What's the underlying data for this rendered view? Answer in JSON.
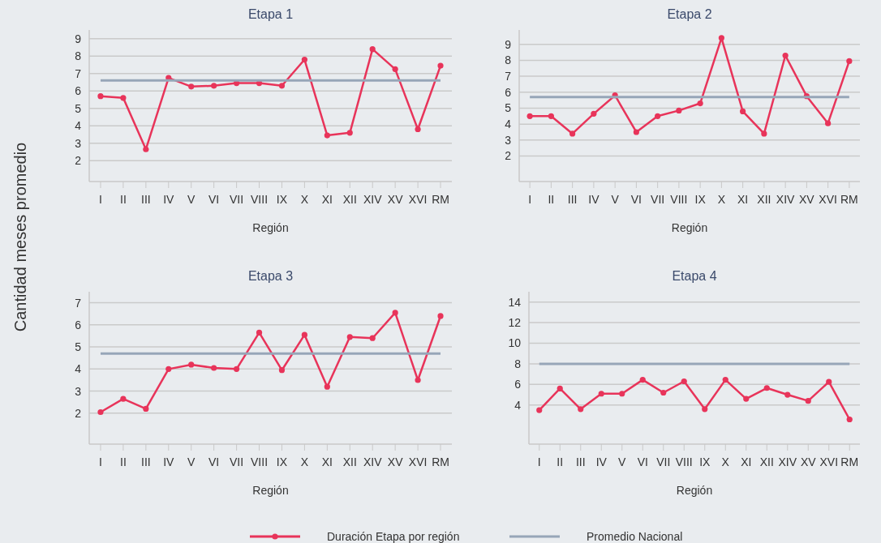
{
  "chart_data": [
    {
      "type": "line",
      "title": "Etapa 1",
      "xlabel": "Región",
      "ylabel": "Cantidad meses promedio",
      "categories": [
        "I",
        "II",
        "III",
        "IV",
        "V",
        "VI",
        "VII",
        "VIII",
        "IX",
        "X",
        "XI",
        "XII",
        "XIV",
        "XV",
        "XVI",
        "RM"
      ],
      "ylim": [
        0.8,
        9.5
      ],
      "yticks": [
        2,
        3,
        4,
        5,
        6,
        7,
        8,
        9
      ],
      "grid": "y",
      "marker": "circle",
      "legend": "bottom",
      "series": [
        {
          "name": "Duración Etapa por región",
          "color": "#e8345a",
          "values": [
            5.7,
            5.6,
            2.65,
            6.75,
            6.25,
            6.3,
            6.45,
            6.45,
            6.3,
            7.8,
            3.45,
            3.6,
            8.4,
            7.25,
            3.8,
            7.45
          ]
        },
        {
          "name": "Promedio Nacional",
          "color": "#97a6b8",
          "marker": "none",
          "values": [
            6.6,
            6.6,
            6.6,
            6.6,
            6.6,
            6.6,
            6.6,
            6.6,
            6.6,
            6.6,
            6.6,
            6.6,
            6.6,
            6.6,
            6.6,
            6.6
          ]
        }
      ]
    },
    {
      "type": "line",
      "title": "Etapa 2",
      "xlabel": "Región",
      "categories": [
        "I",
        "II",
        "III",
        "IV",
        "V",
        "VI",
        "VII",
        "VIII",
        "IX",
        "X",
        "XI",
        "XII",
        "XIV",
        "XV",
        "XVI",
        "RM"
      ],
      "ylim": [
        0.4,
        9.9
      ],
      "yticks": [
        2,
        3,
        4,
        5,
        6,
        7,
        8,
        9
      ],
      "grid": "y",
      "marker": "circle",
      "series": [
        {
          "color": "#e8345a",
          "values": [
            4.5,
            4.5,
            3.4,
            4.65,
            5.8,
            3.5,
            4.5,
            4.85,
            5.3,
            9.4,
            4.8,
            3.4,
            8.3,
            5.75,
            4.05,
            7.95
          ]
        },
        {
          "color": "#97a6b8",
          "marker": "none",
          "values": [
            5.7,
            5.7,
            5.7,
            5.7,
            5.7,
            5.7,
            5.7,
            5.7,
            5.7,
            5.7,
            5.7,
            5.7,
            5.7,
            5.7,
            5.7,
            5.7
          ]
        }
      ]
    },
    {
      "type": "line",
      "title": "Etapa 3",
      "xlabel": "Región",
      "categories": [
        "I",
        "II",
        "III",
        "IV",
        "V",
        "VI",
        "VII",
        "VIII",
        "IX",
        "X",
        "XI",
        "XII",
        "XIV",
        "XV",
        "XVI",
        "RM"
      ],
      "ylim": [
        0.6,
        7.5
      ],
      "yticks": [
        2,
        3,
        4,
        5,
        6,
        7
      ],
      "grid": "y",
      "marker": "circle",
      "series": [
        {
          "color": "#e8345a",
          "values": [
            2.05,
            2.65,
            2.2,
            4.0,
            4.2,
            4.05,
            4.0,
            5.65,
            3.95,
            5.55,
            3.2,
            5.45,
            5.4,
            6.55,
            3.5,
            6.4
          ]
        },
        {
          "color": "#97a6b8",
          "marker": "none",
          "values": [
            4.7,
            4.7,
            4.7,
            4.7,
            4.7,
            4.7,
            4.7,
            4.7,
            4.7,
            4.7,
            4.7,
            4.7,
            4.7,
            4.7,
            4.7,
            4.7
          ]
        }
      ]
    },
    {
      "type": "line",
      "title": "Etapa 4",
      "xlabel": "Región",
      "categories": [
        "I",
        "II",
        "III",
        "IV",
        "V",
        "VI",
        "VII",
        "VIII",
        "IX",
        "X",
        "XI",
        "XII",
        "XIV",
        "XV",
        "XVI",
        "RM"
      ],
      "ylim": [
        0.2,
        15
      ],
      "yticks": [
        4,
        6,
        8,
        10,
        12,
        14
      ],
      "grid": "y",
      "marker": "circle",
      "series": [
        {
          "color": "#e8345a",
          "values": [
            3.5,
            5.6,
            3.6,
            5.1,
            5.1,
            6.45,
            5.2,
            6.3,
            3.6,
            6.45,
            4.6,
            5.65,
            5.0,
            4.4,
            6.25,
            2.6
          ]
        },
        {
          "color": "#97a6b8",
          "marker": "none",
          "values": [
            8,
            8,
            8,
            8,
            8,
            8,
            8,
            8,
            8,
            8,
            8,
            8,
            8,
            8,
            8,
            8
          ]
        }
      ]
    }
  ]
}
